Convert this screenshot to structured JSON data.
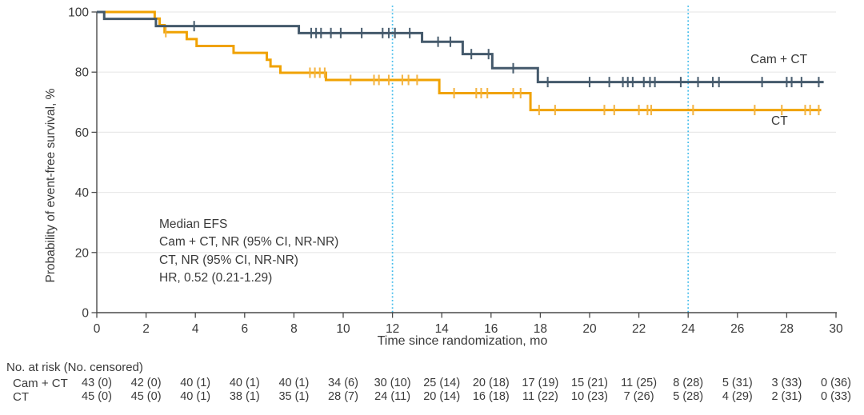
{
  "colors": {
    "cam_ct": "#44596B",
    "ct": "#F0A202",
    "ct_censor": "#F4B23C",
    "reference_line": "#3FBBEB",
    "grid": "#E9E9E9",
    "axis": "#4A4A4A",
    "text": "#3A3A3A"
  },
  "chart_data": {
    "type": "line",
    "subtype": "kaplan_meier_step",
    "title": "",
    "xlabel": "Time since randomization, mo",
    "ylabel": "Probability of event-free survival, %",
    "xlim": [
      0,
      30
    ],
    "ylim": [
      0,
      100
    ],
    "xticks": [
      0,
      2,
      4,
      6,
      8,
      10,
      12,
      14,
      16,
      18,
      20,
      22,
      24,
      26,
      28,
      30
    ],
    "yticks": [
      0,
      20,
      40,
      60,
      80,
      100
    ],
    "grid": "horizontal-light",
    "legend_position": "curve-end-labels",
    "reference_lines_x": [
      12,
      24
    ],
    "series": [
      {
        "name": "Cam + CT",
        "color": "#44596B",
        "start": [
          0,
          100
        ],
        "steps": [
          [
            0.3,
            97.7
          ],
          [
            2.4,
            95.3
          ],
          [
            8.2,
            93.0
          ],
          [
            13.2,
            90.1
          ],
          [
            14.85,
            86.0
          ],
          [
            16.05,
            81.3
          ],
          [
            17.9,
            76.7
          ]
        ],
        "end_time": 29.5,
        "censor_times": [
          3.95,
          8.7,
          8.9,
          9.1,
          9.5,
          9.9,
          10.75,
          11.6,
          11.85,
          12.1,
          12.7,
          13.85,
          14.35,
          15.2,
          15.9,
          16.9,
          18.3,
          20.0,
          20.8,
          21.35,
          21.55,
          21.75,
          22.2,
          22.45,
          22.65,
          23.7,
          24.4,
          25.0,
          25.25,
          27.0,
          28.0,
          28.2,
          28.6,
          29.3
        ]
      },
      {
        "name": "CT",
        "color": "#F0A202",
        "censor_color": "#F4B23C",
        "start": [
          0,
          100
        ],
        "steps": [
          [
            2.35,
            97.8
          ],
          [
            2.55,
            95.6
          ],
          [
            2.75,
            93.3
          ],
          [
            3.65,
            91.0
          ],
          [
            4.05,
            88.7
          ],
          [
            5.55,
            86.4
          ],
          [
            6.9,
            84.1
          ],
          [
            7.05,
            81.9
          ],
          [
            7.45,
            79.8
          ],
          [
            9.3,
            77.4
          ],
          [
            13.9,
            73.0
          ],
          [
            17.6,
            67.4
          ]
        ],
        "end_time": 29.4,
        "censor_times": [
          2.8,
          8.65,
          8.85,
          9.05,
          9.25,
          10.3,
          11.25,
          11.45,
          11.85,
          12.4,
          12.65,
          13.0,
          14.5,
          15.4,
          15.6,
          15.85,
          16.9,
          17.2,
          17.95,
          18.6,
          20.6,
          21.0,
          22.0,
          22.35,
          22.5,
          24.2,
          26.7,
          27.8,
          28.75,
          28.95,
          29.3
        ]
      }
    ],
    "annotation": [
      "Median EFS",
      "Cam + CT, NR (95% CI, NR-NR)",
      "CT, NR (95% CI, NR-NR)",
      "HR, 0.52 (0.21-1.29)"
    ],
    "risk_table": {
      "header": "No. at risk (No. censored)",
      "times": [
        0,
        2,
        4,
        6,
        8,
        10,
        12,
        14,
        16,
        18,
        20,
        22,
        24,
        26,
        28,
        30
      ],
      "rows": [
        {
          "label": "Cam + CT",
          "values": [
            "43 (0)",
            "42 (0)",
            "40 (1)",
            "40 (1)",
            "40 (1)",
            "34 (6)",
            "30 (10)",
            "25 (14)",
            "20 (18)",
            "17 (19)",
            "15 (21)",
            "11 (25)",
            "8 (28)",
            "5 (31)",
            "3 (33)",
            "0 (36)"
          ]
        },
        {
          "label": "CT",
          "values": [
            "45 (0)",
            "45 (0)",
            "40 (1)",
            "38 (1)",
            "35 (1)",
            "28 (7)",
            "24 (11)",
            "20 (14)",
            "16 (18)",
            "11 (22)",
            "10 (23)",
            "7 (26)",
            "5 (28)",
            "4 (29)",
            "2 (31)",
            "0 (33)"
          ]
        }
      ]
    }
  }
}
